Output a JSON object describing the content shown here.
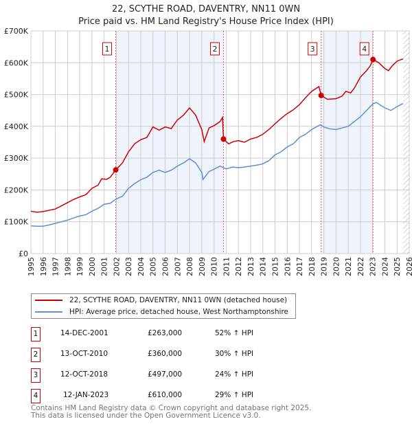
{
  "title": "22, SCYTHE ROAD, DAVENTRY, NN11 0WN",
  "subtitle": "Price paid vs. HM Land Registry's House Price Index (HPI)",
  "colors": {
    "property": "#cc0000",
    "hpi": "#5b8fd4",
    "shade": "#eef3fc"
  },
  "chart_data": {
    "type": "line",
    "title": "22, SCYTHE ROAD, DAVENTRY, NN11 0WN",
    "xlim": [
      1995,
      2026
    ],
    "ylim": [
      0,
      700000
    ],
    "yticks": [
      {
        "v": 0,
        "label": "£0"
      },
      {
        "v": 100000,
        "label": "£100K"
      },
      {
        "v": 200000,
        "label": "£200K"
      },
      {
        "v": 300000,
        "label": "£300K"
      },
      {
        "v": 400000,
        "label": "£400K"
      },
      {
        "v": 500000,
        "label": "£500K"
      },
      {
        "v": 600000,
        "label": "£600K"
      },
      {
        "v": 700000,
        "label": "£700K"
      }
    ],
    "xticks": [
      "1995",
      "1996",
      "1997",
      "1998",
      "1999",
      "2000",
      "2001",
      "2002",
      "2003",
      "2004",
      "2005",
      "2006",
      "2007",
      "2008",
      "2009",
      "2010",
      "2011",
      "2012",
      "2013",
      "2014",
      "2015",
      "2016",
      "2017",
      "2018",
      "2019",
      "2020",
      "2021",
      "2022",
      "2023",
      "2024",
      "2025",
      "2026"
    ],
    "series": [
      {
        "name": "22, SCYTHE ROAD, DAVENTRY, NN11 0WN (detached house)",
        "x": [
          1995,
          1995.5,
          1996,
          1996.5,
          1997,
          1997.5,
          1998,
          1998.5,
          1999,
          1999.5,
          2000,
          2000.5,
          2000.8,
          2001.2,
          2001.5,
          2001.95,
          2002.5,
          2003,
          2003.5,
          2004,
          2004.5,
          2005,
          2005.5,
          2006,
          2006.5,
          2007,
          2007.5,
          2008,
          2008.5,
          2009,
          2009.2,
          2009.6,
          2010,
          2010.5,
          2010.7,
          2010.78,
          2011.2,
          2011.6,
          2012,
          2012.5,
          2013,
          2013.5,
          2014,
          2014.5,
          2015,
          2015.5,
          2016,
          2016.5,
          2017,
          2017.5,
          2018,
          2018.6,
          2018.78,
          2019.3,
          2020,
          2020.5,
          2020.8,
          2021.2,
          2021.5,
          2022,
          2022.5,
          2022.8,
          2023.03,
          2023.5,
          2024,
          2024.3,
          2024.6,
          2025,
          2025.5
        ],
        "y": [
          133000,
          130000,
          132000,
          136000,
          140000,
          150000,
          160000,
          170000,
          178000,
          185000,
          205000,
          215000,
          235000,
          233000,
          240000,
          263000,
          285000,
          320000,
          345000,
          358000,
          365000,
          398000,
          388000,
          398000,
          393000,
          420000,
          435000,
          458000,
          435000,
          390000,
          352000,
          395000,
          402000,
          415000,
          428000,
          360000,
          345000,
          352000,
          355000,
          350000,
          360000,
          365000,
          375000,
          390000,
          408000,
          425000,
          440000,
          452000,
          468000,
          490000,
          510000,
          525000,
          497000,
          485000,
          487000,
          495000,
          510000,
          505000,
          520000,
          555000,
          575000,
          590000,
          610000,
          600000,
          582000,
          575000,
          590000,
          605000,
          612000
        ]
      },
      {
        "name": "HPI: Average price, detached house, West Northamptonshire",
        "x": [
          1995,
          1995.5,
          1996,
          1996.5,
          1997,
          1997.5,
          1998,
          1998.5,
          1999,
          1999.5,
          2000,
          2000.5,
          2001,
          2001.5,
          2002,
          2002.5,
          2003,
          2003.5,
          2004,
          2004.5,
          2005,
          2005.5,
          2006,
          2006.5,
          2007,
          2007.5,
          2008,
          2008.5,
          2009,
          2009.1,
          2009.6,
          2010,
          2010.5,
          2011,
          2011.5,
          2012,
          2012.5,
          2013,
          2013.5,
          2014,
          2014.5,
          2015,
          2015.5,
          2016,
          2016.5,
          2017,
          2017.5,
          2018,
          2018.7,
          2019,
          2019.5,
          2020,
          2020.5,
          2021,
          2021.5,
          2022,
          2022.5,
          2023,
          2023.3,
          2023.7,
          2024,
          2024.5,
          2025,
          2025.5
        ],
        "y": [
          87000,
          86000,
          86000,
          90000,
          95000,
          100000,
          105000,
          112000,
          118000,
          122000,
          133000,
          142000,
          155000,
          158000,
          172000,
          180000,
          205000,
          220000,
          232000,
          240000,
          255000,
          262000,
          255000,
          262000,
          275000,
          285000,
          298000,
          285000,
          255000,
          233000,
          258000,
          265000,
          275000,
          266000,
          272000,
          270000,
          272000,
          275000,
          278000,
          282000,
          292000,
          310000,
          320000,
          335000,
          345000,
          365000,
          375000,
          390000,
          405000,
          398000,
          392000,
          390000,
          395000,
          400000,
          415000,
          430000,
          450000,
          470000,
          475000,
          465000,
          458000,
          450000,
          462000,
          472000
        ]
      }
    ],
    "sales": [
      {
        "n": "1",
        "x": 2001.95,
        "y": 263000
      },
      {
        "n": "2",
        "x": 2010.78,
        "y": 360000
      },
      {
        "n": "3",
        "x": 2018.78,
        "y": 497000
      },
      {
        "n": "4",
        "x": 2023.03,
        "y": 610000
      }
    ],
    "forecast_from": 2025.5
  },
  "legend": {
    "property": "22, SCYTHE ROAD, DAVENTRY, NN11 0WN (detached house)",
    "hpi": "HPI: Average price, detached house, West Northamptonshire"
  },
  "transactions": [
    {
      "n": "1",
      "date": "14-DEC-2001",
      "price": "£263,000",
      "hpi": "52% ↑ HPI"
    },
    {
      "n": "2",
      "date": "13-OCT-2010",
      "price": "£360,000",
      "hpi": "30% ↑ HPI"
    },
    {
      "n": "3",
      "date": "12-OCT-2018",
      "price": "£497,000",
      "hpi": "24% ↑ HPI"
    },
    {
      "n": "4",
      "date": "12-JAN-2023",
      "price": "£610,000",
      "hpi": "29% ↑ HPI"
    }
  ],
  "footer": {
    "line1": "Contains HM Land Registry data © Crown copyright and database right 2025.",
    "line2": "This data is licensed under the Open Government Licence v3.0."
  }
}
